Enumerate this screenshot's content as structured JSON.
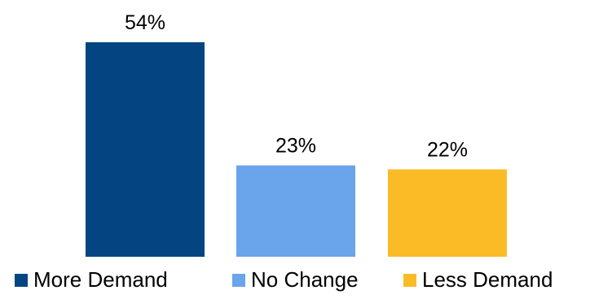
{
  "chart_data": {
    "type": "bar",
    "categories": [
      "More Demand",
      "No Change",
      "Less Demand"
    ],
    "values": [
      54,
      23,
      22
    ],
    "data_labels": [
      "54%",
      "23%",
      "22%"
    ],
    "colors": [
      "#044581",
      "#6aa4ea",
      "#fbbb27"
    ],
    "ylim": [
      0,
      54
    ],
    "grid": false,
    "legend": {
      "position": "bottom",
      "entries": [
        "More Demand",
        "No Change",
        "Less Demand"
      ]
    }
  }
}
